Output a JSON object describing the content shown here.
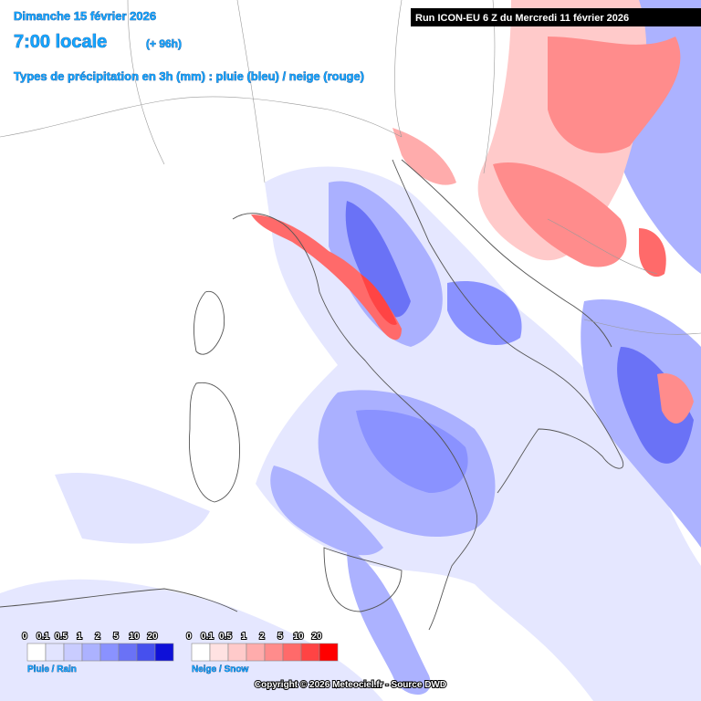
{
  "header": {
    "date": "Dimanche 15 février 2026",
    "time": "7:00 locale",
    "lead": "(+ 96h)",
    "subtitle": "Types de précipitation en 3h (mm) : pluie (bleu) / neige (rouge)",
    "run": "Run ICON-EU 6 Z du Mercredi 11 février 2026"
  },
  "legends": [
    {
      "label": "Pluie / Rain",
      "values": [
        0,
        0.1,
        0.5,
        1,
        2,
        5,
        10,
        20
      ],
      "colors": [
        "#ffffff",
        "#e2e4ff",
        "#c9ccff",
        "#acb2ff",
        "#8a92ff",
        "#6a72f6",
        "#4650ee",
        "#0e10d8"
      ]
    },
    {
      "label": "Neige / Snow",
      "values": [
        0,
        0.1,
        0.5,
        1,
        2,
        5,
        10,
        20
      ],
      "colors": [
        "#ffffff",
        "#ffe2e2",
        "#ffcaca",
        "#ffacac",
        "#ff8c8c",
        "#ff6a6a",
        "#ff4444",
        "#ff0000"
      ]
    }
  ],
  "footer": {
    "copyright": "Copyright © 2026 Meteociel.fr - Source DWD"
  }
}
